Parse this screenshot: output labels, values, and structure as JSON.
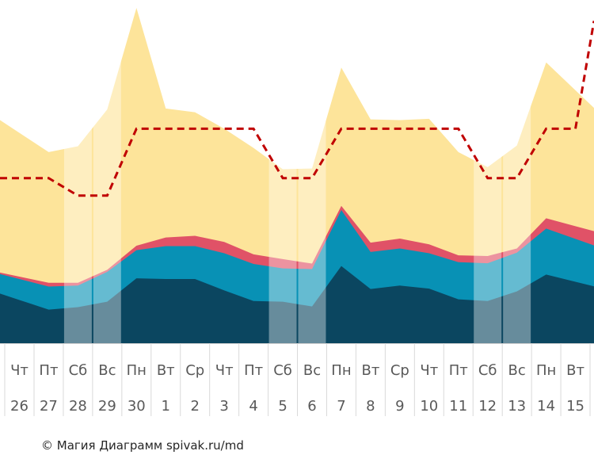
{
  "chart_data": {
    "type": "area",
    "title": "",
    "xlabel": "",
    "ylabel": "",
    "ylim": [
      0,
      100
    ],
    "categories": [
      {
        "weekday": "Чт",
        "day": "26"
      },
      {
        "weekday": "Пт",
        "day": "27"
      },
      {
        "weekday": "Сб",
        "day": "28"
      },
      {
        "weekday": "Вс",
        "day": "29"
      },
      {
        "weekday": "Пн",
        "day": "30"
      },
      {
        "weekday": "Вт",
        "day": "1"
      },
      {
        "weekday": "Ср",
        "day": "2"
      },
      {
        "weekday": "Чт",
        "day": "3"
      },
      {
        "weekday": "Пт",
        "day": "4"
      },
      {
        "weekday": "Сб",
        "day": "5"
      },
      {
        "weekday": "Вс",
        "day": "6"
      },
      {
        "weekday": "Пн",
        "day": "7"
      },
      {
        "weekday": "Вт",
        "day": "8"
      },
      {
        "weekday": "Ср",
        "day": "9"
      },
      {
        "weekday": "Чт",
        "day": "10"
      },
      {
        "weekday": "Пт",
        "day": "11"
      },
      {
        "weekday": "Сб",
        "day": "12"
      },
      {
        "weekday": "Вс",
        "day": "13"
      },
      {
        "weekday": "Пн",
        "day": "14"
      },
      {
        "weekday": "Вт",
        "day": "15"
      }
    ],
    "weekend_indices": [
      2,
      3,
      9,
      10,
      16,
      17
    ],
    "stacked_totals": [
      {
        "name": "dark",
        "color": "#0b4660",
        "values": [
          12.6,
          9.8,
          10.5,
          12.1,
          18.9,
          18.7,
          18.7,
          15.4,
          12.3,
          12.1,
          10.7,
          22.5,
          15.8,
          16.8,
          15.9,
          12.8,
          12.3,
          15.1,
          20.0,
          17.9
        ]
      },
      {
        "name": "teal",
        "color": "#0891b5",
        "values": [
          18.7,
          16.5,
          16.8,
          20.8,
          27.1,
          28.3,
          28.3,
          26.2,
          23.1,
          21.8,
          21.6,
          38.8,
          26.6,
          27.6,
          26.2,
          23.6,
          23.3,
          26.4,
          33.4,
          30.4
        ]
      },
      {
        "name": "pink",
        "color": "#e05267",
        "values": [
          19.4,
          17.6,
          17.6,
          21.4,
          28.4,
          30.8,
          31.3,
          29.5,
          25.9,
          24.5,
          23.2,
          40.0,
          29.3,
          30.5,
          28.8,
          25.6,
          25.4,
          27.6,
          36.4,
          34.1
        ]
      },
      {
        "name": "yellow",
        "color": "#fde49a",
        "values": [
          61.3,
          55.7,
          57.4,
          68.1,
          97.7,
          68.4,
          67.3,
          62.5,
          56.9,
          50.7,
          50.9,
          80.3,
          65.2,
          65.0,
          65.4,
          55.7,
          51.3,
          57.6,
          81.8,
          73.7
        ]
      }
    ],
    "target_line": {
      "name": "dashed-target",
      "color": "#c00000",
      "values": [
        48.1,
        48.1,
        43.0,
        43.0,
        62.5,
        62.5,
        62.5,
        62.5,
        62.5,
        48.1,
        48.1,
        62.5,
        62.5,
        62.5,
        62.5,
        62.5,
        48.1,
        48.1,
        62.5,
        62.5
      ]
    }
  },
  "credit": "© Магия Диаграмм spivak.ru/md"
}
